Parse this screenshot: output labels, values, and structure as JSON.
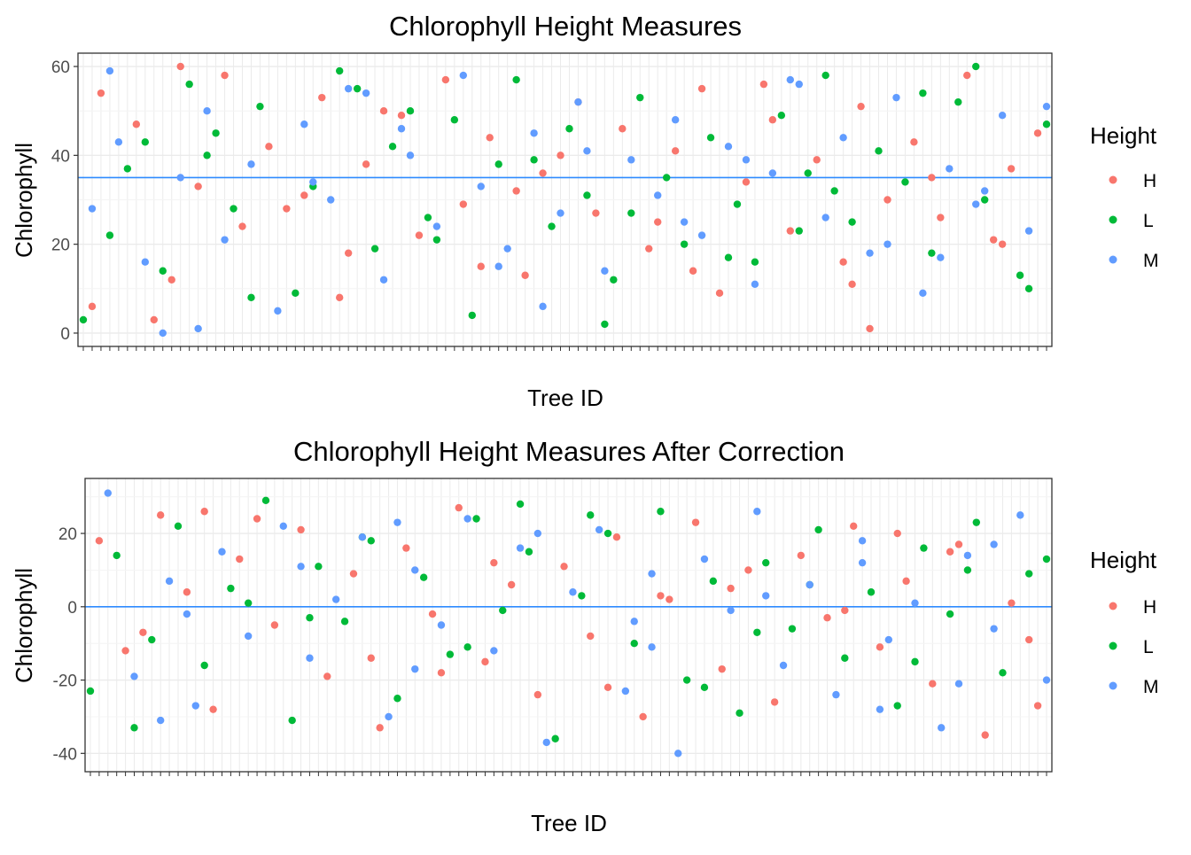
{
  "chart_data": [
    {
      "type": "scatter",
      "title": "Chlorophyll Height Measures",
      "xlabel": "Tree ID",
      "ylabel": "Chlorophyll",
      "ylim": [
        -3,
        63
      ],
      "yticks": [
        0,
        20,
        40,
        60
      ],
      "reference_line": 35,
      "x_category_count": 110,
      "grid": true,
      "legend": {
        "title": "Height",
        "position": "right",
        "entries": [
          "H",
          "L",
          "M"
        ]
      },
      "series": [
        {
          "name": "H",
          "color": "#F8766D",
          "x": [
            3,
            7,
            11,
            14,
            17,
            19,
            22,
            26,
            28,
            31,
            33,
            37,
            39,
            42,
            44,
            47,
            51,
            53,
            57,
            59,
            62,
            65,
            68,
            71,
            73,
            76,
            79,
            81,
            84,
            87,
            89,
            92,
            95,
            98,
            101,
            104,
            106,
            109,
            2,
            9,
            24,
            35,
            46,
            55,
            66,
            78,
            88,
            97,
            105,
            12,
            30,
            50,
            70,
            90
          ],
          "y": [
            54,
            47,
            12,
            33,
            58,
            24,
            42,
            31,
            53,
            18,
            38,
            49,
            22,
            57,
            29,
            44,
            13,
            36,
            52,
            27,
            46,
            19,
            41,
            55,
            9,
            34,
            48,
            23,
            39,
            16,
            51,
            30,
            43,
            26,
            58,
            21,
            37,
            45,
            6,
            3,
            28,
            50,
            15,
            40,
            25,
            56,
            11,
            35,
            20,
            60,
            8,
            32,
            14,
            1
          ]
        },
        {
          "name": "L",
          "color": "#00BA38",
          "x": [
            1,
            4,
            6,
            10,
            13,
            16,
            18,
            21,
            25,
            27,
            30,
            34,
            36,
            40,
            43,
            45,
            48,
            50,
            54,
            56,
            58,
            61,
            64,
            67,
            69,
            72,
            75,
            77,
            80,
            83,
            85,
            88,
            91,
            94,
            97,
            100,
            103,
            107,
            110,
            8,
            20,
            32,
            41,
            52,
            63,
            74,
            86,
            96,
            108,
            15,
            38,
            60,
            82,
            102
          ],
          "y": [
            3,
            22,
            37,
            14,
            56,
            45,
            28,
            51,
            9,
            33,
            59,
            19,
            42,
            26,
            48,
            4,
            38,
            57,
            24,
            46,
            31,
            12,
            53,
            35,
            20,
            44,
            29,
            16,
            49,
            36,
            58,
            25,
            41,
            34,
            18,
            52,
            30,
            13,
            47,
            43,
            8,
            55,
            21,
            39,
            27,
            17,
            32,
            54,
            10,
            40,
            50,
            2,
            23,
            60
          ]
        },
        {
          "name": "M",
          "color": "#619CFF",
          "x": [
            2,
            5,
            8,
            12,
            15,
            17,
            20,
            23,
            26,
            29,
            31,
            35,
            38,
            41,
            44,
            46,
            49,
            52,
            55,
            57,
            60,
            63,
            66,
            68,
            71,
            74,
            77,
            79,
            82,
            85,
            87,
            90,
            93,
            96,
            99,
            102,
            105,
            108,
            4,
            14,
            27,
            37,
            48,
            58,
            69,
            81,
            92,
            103,
            110,
            10,
            33,
            53,
            76,
            98
          ],
          "y": [
            28,
            43,
            16,
            35,
            50,
            21,
            38,
            5,
            47,
            30,
            55,
            12,
            40,
            24,
            58,
            33,
            19,
            45,
            27,
            52,
            14,
            39,
            31,
            48,
            22,
            42,
            11,
            36,
            56,
            26,
            44,
            18,
            53,
            9,
            37,
            29,
            49,
            23,
            59,
            1,
            34,
            46,
            15,
            41,
            25,
            57,
            20,
            32,
            51,
            0,
            54,
            6,
            39,
            17
          ]
        }
      ]
    },
    {
      "type": "scatter",
      "title": "Chlorophyll Height Measures After Correction",
      "xlabel": "Tree ID",
      "ylabel": "Chlorophyll",
      "ylim": [
        -45,
        35
      ],
      "yticks": [
        -40,
        -20,
        0,
        20
      ],
      "reference_line": 0,
      "x_category_count": 110,
      "grid": true,
      "legend": {
        "title": "Height",
        "position": "right",
        "entries": [
          "H",
          "L",
          "M"
        ]
      },
      "series": [
        {
          "name": "H",
          "color": "#F8766D",
          "x": [
            2,
            5,
            9,
            12,
            15,
            18,
            22,
            25,
            28,
            31,
            34,
            37,
            40,
            43,
            46,
            49,
            52,
            55,
            58,
            61,
            64,
            67,
            70,
            73,
            76,
            79,
            82,
            85,
            88,
            91,
            94,
            97,
            100,
            103,
            106,
            109,
            7,
            20,
            33,
            47,
            60,
            74,
            87,
            99,
            108,
            14,
            41,
            66,
            93
          ],
          "y": [
            18,
            -12,
            25,
            4,
            -28,
            13,
            -5,
            21,
            -19,
            9,
            -33,
            16,
            -2,
            27,
            -15,
            6,
            -24,
            11,
            -8,
            19,
            -30,
            2,
            23,
            -17,
            10,
            -26,
            14,
            -3,
            22,
            -11,
            7,
            -21,
            17,
            -35,
            1,
            -27,
            -7,
            24,
            -14,
            12,
            -22,
            5,
            -1,
            15,
            -9,
            26,
            -18,
            3,
            20
          ]
        },
        {
          "name": "L",
          "color": "#00BA38",
          "x": [
            1,
            4,
            8,
            11,
            14,
            17,
            21,
            24,
            27,
            30,
            33,
            36,
            39,
            42,
            45,
            48,
            51,
            54,
            57,
            60,
            63,
            66,
            69,
            72,
            75,
            78,
            81,
            84,
            87,
            90,
            93,
            96,
            99,
            102,
            105,
            108,
            6,
            19,
            32,
            44,
            58,
            71,
            83,
            95,
            110,
            26,
            50,
            77,
            101
          ],
          "y": [
            -23,
            14,
            -9,
            22,
            -16,
            5,
            29,
            -31,
            11,
            -4,
            18,
            -25,
            8,
            -13,
            24,
            -1,
            15,
            -36,
            3,
            20,
            -10,
            26,
            -20,
            7,
            -29,
            12,
            -6,
            21,
            -14,
            4,
            -27,
            16,
            -2,
            23,
            -18,
            9,
            -33,
            1,
            19,
            -11,
            25,
            -22,
            6,
            -15,
            13,
            -3,
            28,
            -7,
            10
          ]
        },
        {
          "name": "M",
          "color": "#619CFF",
          "x": [
            3,
            6,
            10,
            13,
            16,
            19,
            23,
            26,
            29,
            32,
            35,
            38,
            41,
            44,
            47,
            50,
            53,
            56,
            59,
            62,
            65,
            68,
            71,
            74,
            77,
            80,
            83,
            86,
            89,
            92,
            95,
            98,
            101,
            104,
            107,
            110,
            12,
            25,
            38,
            52,
            65,
            78,
            91,
            104,
            9,
            36,
            63,
            89,
            100
          ],
          "y": [
            31,
            -19,
            7,
            -27,
            15,
            -8,
            22,
            -14,
            2,
            19,
            -30,
            10,
            -5,
            24,
            -12,
            16,
            -37,
            4,
            21,
            -23,
            9,
            -40,
            13,
            -1,
            26,
            -16,
            6,
            -24,
            18,
            -9,
            1,
            -33,
            14,
            -6,
            25,
            -20,
            -2,
            11,
            -17,
            20,
            -11,
            3,
            -28,
            17,
            -31,
            23,
            -4,
            12,
            -21
          ]
        }
      ]
    }
  ]
}
